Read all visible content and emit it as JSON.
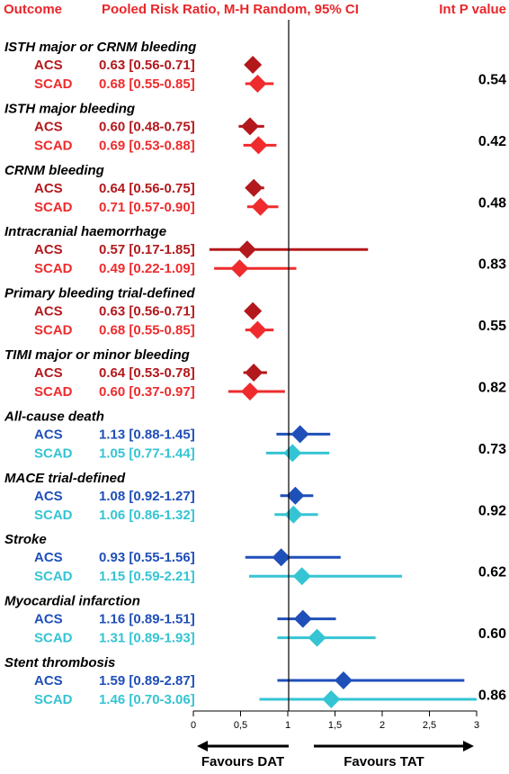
{
  "header": {
    "outcome": "Outcome",
    "measure": "Pooled Risk Ratio, M-H Random, 95% CI",
    "p": "Int P value"
  },
  "colors": {
    "header": "#e8262a",
    "acs_bleeding": "#b3181c",
    "scad_bleeding": "#ef2b2d",
    "acs_efficacy": "#1f4fb8",
    "scad_efficacy": "#35c4d3"
  },
  "chart_data": {
    "type": "forest",
    "xlim": [
      0,
      3
    ],
    "reference_line": 1,
    "x_ticks": [
      "0",
      "0,5",
      "1",
      "1,5",
      "2",
      "2,5",
      "3"
    ],
    "favours": {
      "left": "Favours DAT",
      "right": "Favours TAT"
    },
    "groups": [
      {
        "name": "ISTH major or CRNM bleeding",
        "p": "0.54",
        "kind": "bleeding",
        "rows": [
          {
            "label": "ACS",
            "text": "0.63 [0.56-0.71]",
            "rr": 0.63,
            "lo": 0.56,
            "hi": 0.71
          },
          {
            "label": "SCAD",
            "text": "0.68 [0.55-0.85]",
            "rr": 0.68,
            "lo": 0.55,
            "hi": 0.85
          }
        ]
      },
      {
        "name": "ISTH major bleeding",
        "p": "0.42",
        "kind": "bleeding",
        "rows": [
          {
            "label": "ACS",
            "text": "0.60 [0.48-0.75]",
            "rr": 0.6,
            "lo": 0.48,
            "hi": 0.75
          },
          {
            "label": "SCAD",
            "text": "0.69 [0.53-0.88]",
            "rr": 0.69,
            "lo": 0.53,
            "hi": 0.88
          }
        ]
      },
      {
        "name": "CRNM bleeding",
        "p": "0.48",
        "kind": "bleeding",
        "rows": [
          {
            "label": "ACS",
            "text": "0.64 [0.56-0.75]",
            "rr": 0.64,
            "lo": 0.56,
            "hi": 0.75
          },
          {
            "label": "SCAD",
            "text": "0.71 [0.57-0.90]",
            "rr": 0.71,
            "lo": 0.57,
            "hi": 0.9
          }
        ]
      },
      {
        "name": "Intracranial haemorrhage",
        "p": "0.83",
        "kind": "bleeding",
        "rows": [
          {
            "label": "ACS",
            "text": "0.57 [0.17-1.85]",
            "rr": 0.57,
            "lo": 0.17,
            "hi": 1.85
          },
          {
            "label": "SCAD",
            "text": "0.49 [0.22-1.09]",
            "rr": 0.49,
            "lo": 0.22,
            "hi": 1.09
          }
        ]
      },
      {
        "name": "Primary bleeding trial-defined",
        "p": "0.55",
        "kind": "bleeding",
        "rows": [
          {
            "label": "ACS",
            "text": "0.63 [0.56-0.71]",
            "rr": 0.63,
            "lo": 0.56,
            "hi": 0.71
          },
          {
            "label": "SCAD",
            "text": "0.68 [0.55-0.85]",
            "rr": 0.68,
            "lo": 0.55,
            "hi": 0.85
          }
        ]
      },
      {
        "name": "TIMI major or minor bleeding",
        "p": "0.82",
        "kind": "bleeding",
        "rows": [
          {
            "label": "ACS",
            "text": "0.64 [0.53-0.78]",
            "rr": 0.64,
            "lo": 0.53,
            "hi": 0.78
          },
          {
            "label": "SCAD",
            "text": "0.60 [0.37-0.97]",
            "rr": 0.6,
            "lo": 0.37,
            "hi": 0.97
          }
        ]
      },
      {
        "name": "All-cause death",
        "p": "0.73",
        "kind": "efficacy",
        "rows": [
          {
            "label": "ACS",
            "text": "1.13 [0.88-1.45]",
            "rr": 1.13,
            "lo": 0.88,
            "hi": 1.45
          },
          {
            "label": "SCAD",
            "text": "1.05 [0.77-1.44]",
            "rr": 1.05,
            "lo": 0.77,
            "hi": 1.44
          }
        ]
      },
      {
        "name": "MACE trial-defined",
        "p": "0.92",
        "kind": "efficacy",
        "rows": [
          {
            "label": "ACS",
            "text": "1.08 [0.92-1.27]",
            "rr": 1.08,
            "lo": 0.92,
            "hi": 1.27
          },
          {
            "label": "SCAD",
            "text": "1.06 [0.86-1.32]",
            "rr": 1.06,
            "lo": 0.86,
            "hi": 1.32
          }
        ]
      },
      {
        "name": "Stroke",
        "p": "0.62",
        "kind": "efficacy",
        "rows": [
          {
            "label": "ACS",
            "text": "0.93 [0.55-1.56]",
            "rr": 0.93,
            "lo": 0.55,
            "hi": 1.56
          },
          {
            "label": "SCAD",
            "text": "1.15 [0.59-2.21]",
            "rr": 1.15,
            "lo": 0.59,
            "hi": 2.21
          }
        ]
      },
      {
        "name": "Myocardial infarction",
        "p": "0.60",
        "kind": "efficacy",
        "rows": [
          {
            "label": "ACS",
            "text": "1.16 [0.89-1.51]",
            "rr": 1.16,
            "lo": 0.89,
            "hi": 1.51
          },
          {
            "label": "SCAD",
            "text": "1.31 [0.89-1.93]",
            "rr": 1.31,
            "lo": 0.89,
            "hi": 1.93
          }
        ]
      },
      {
        "name": "Stent thrombosis",
        "p": "0.86",
        "kind": "efficacy",
        "rows": [
          {
            "label": "ACS",
            "text": "1.59 [0.89-2.87]",
            "rr": 1.59,
            "lo": 0.89,
            "hi": 2.87
          },
          {
            "label": "SCAD",
            "text": "1.46 [0.70-3.06]",
            "rr": 1.46,
            "lo": 0.7,
            "hi": 3.06
          }
        ]
      }
    ]
  }
}
